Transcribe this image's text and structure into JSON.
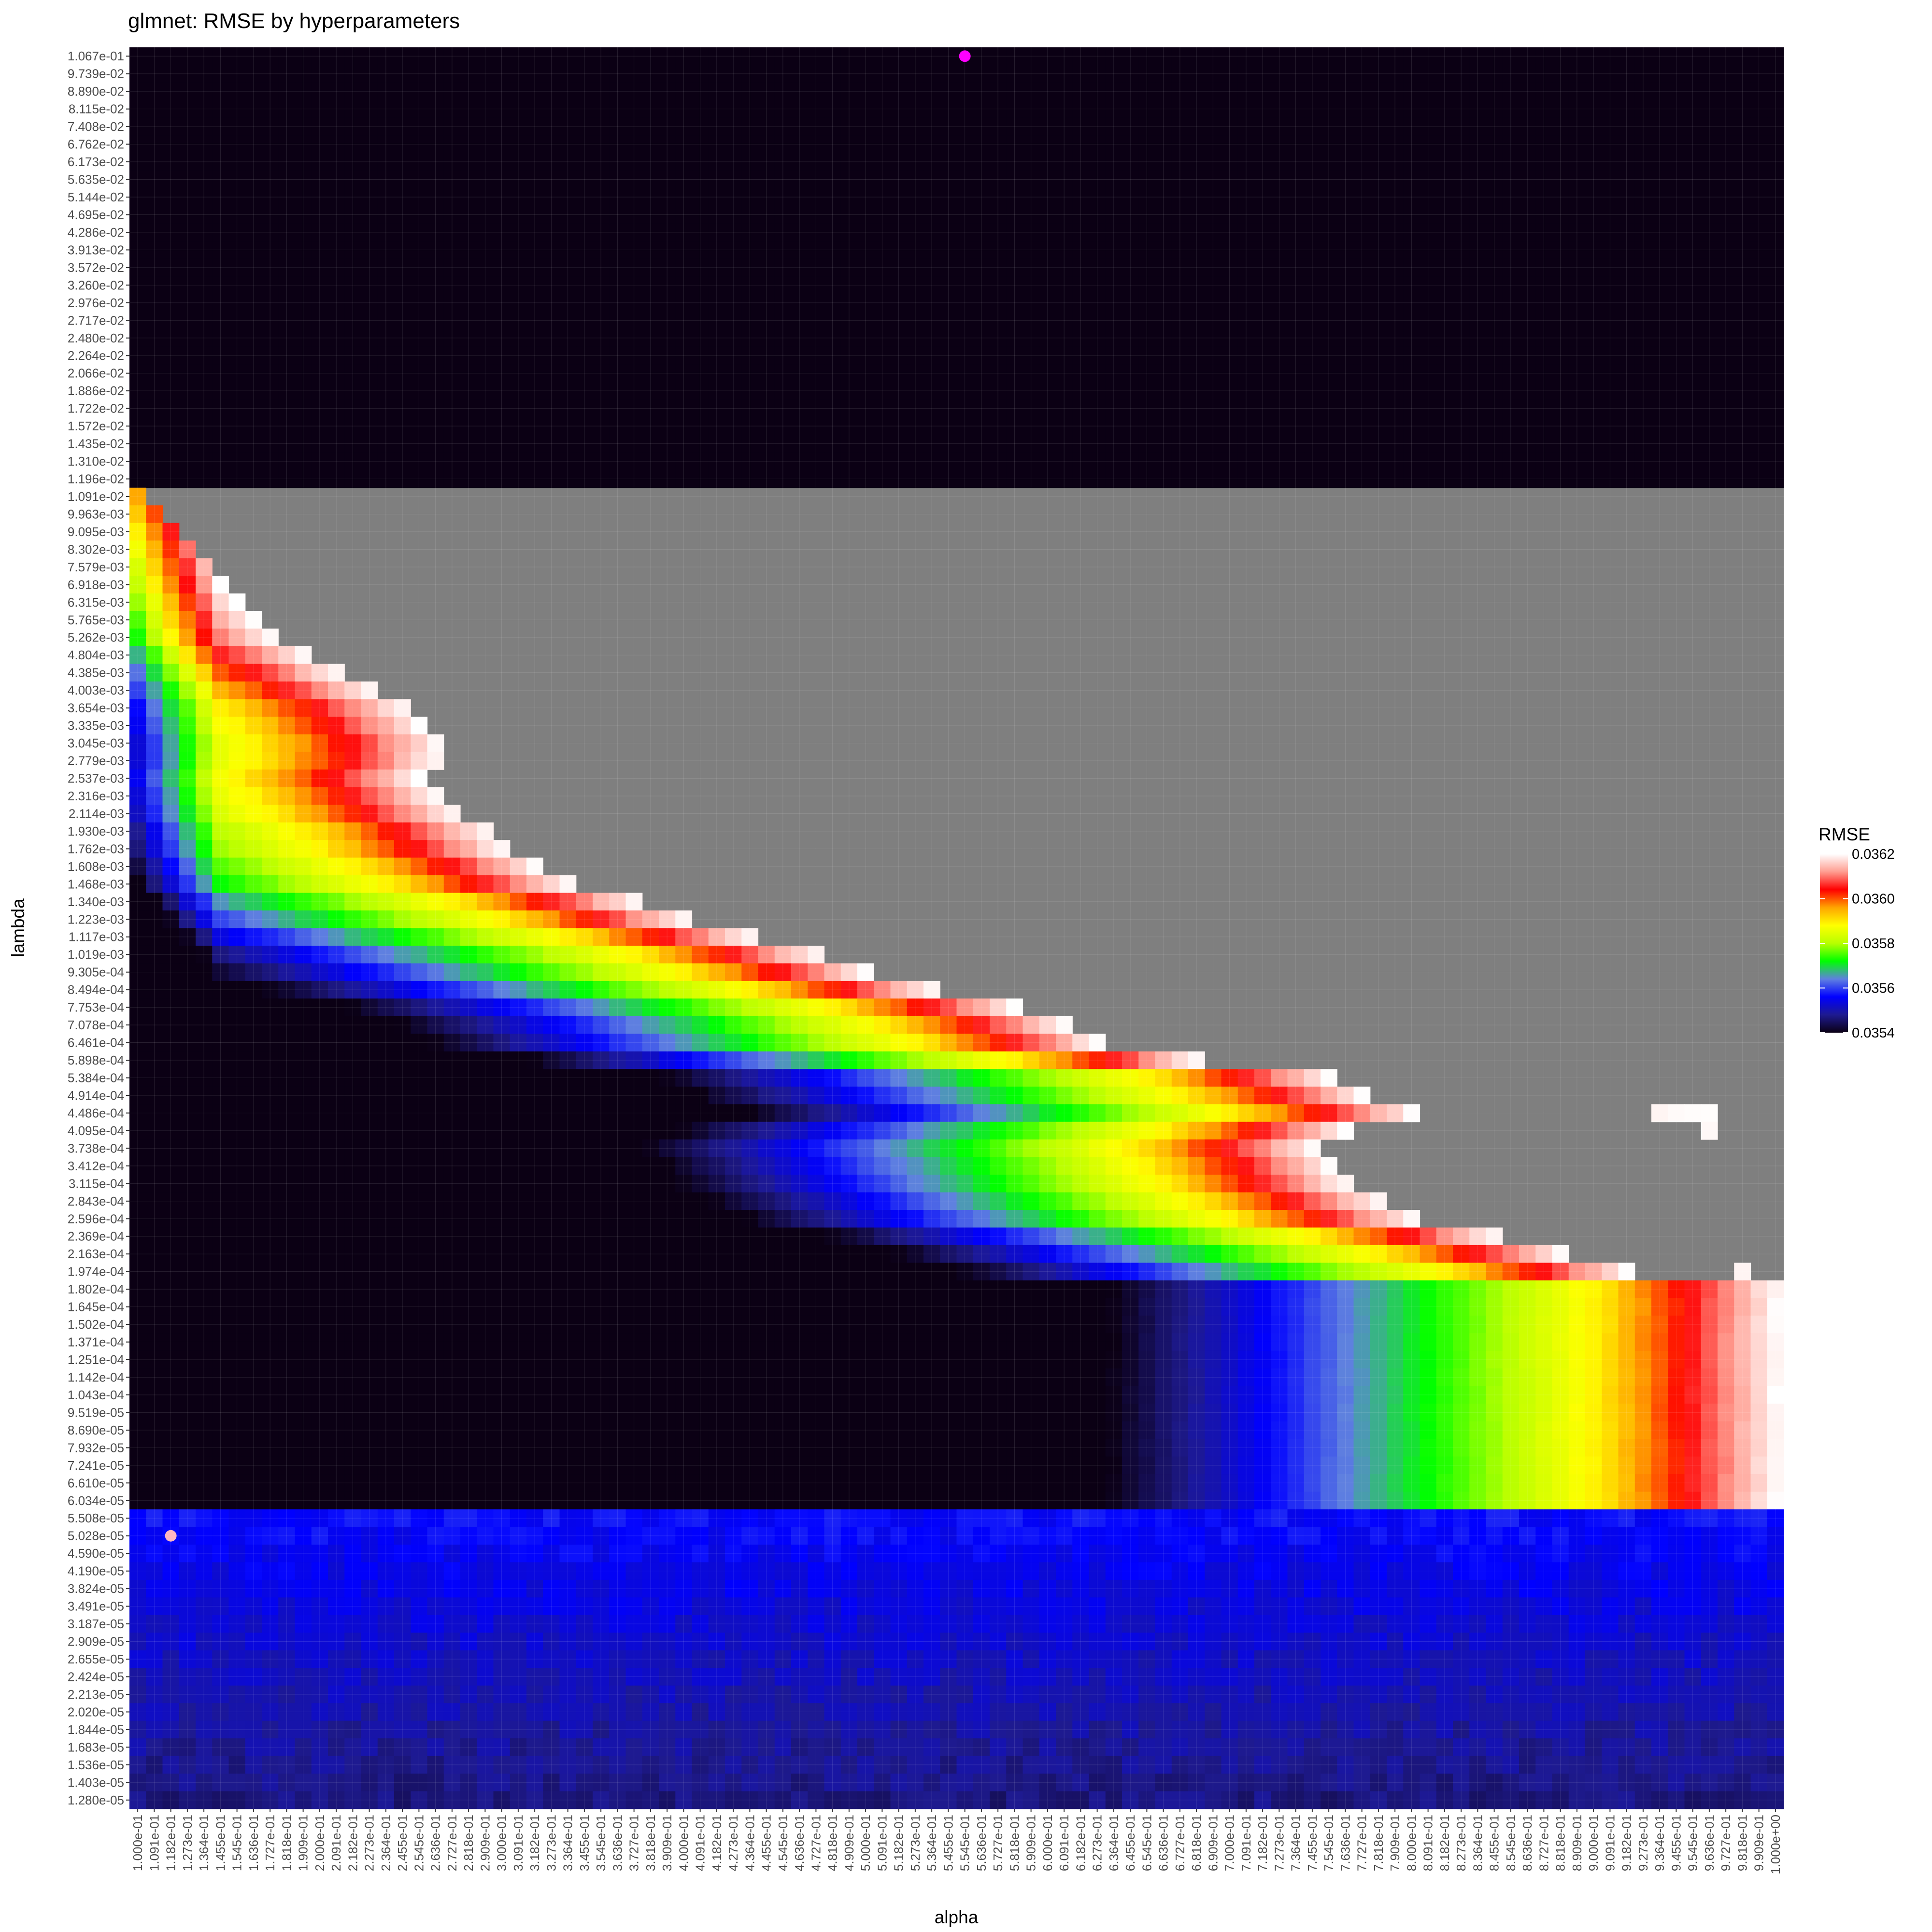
{
  "chart_data": {
    "type": "heatmap",
    "title": "glmnet: RMSE by hyperparameters",
    "xlabel": "alpha",
    "ylabel": "lambda",
    "x_ticks": [
      "1.000e-01",
      "1.091e-01",
      "1.182e-01",
      "1.273e-01",
      "1.364e-01",
      "1.455e-01",
      "1.545e-01",
      "1.636e-01",
      "1.727e-01",
      "1.818e-01",
      "1.909e-01",
      "2.000e-01",
      "2.091e-01",
      "2.182e-01",
      "2.273e-01",
      "2.364e-01",
      "2.455e-01",
      "2.545e-01",
      "2.636e-01",
      "2.727e-01",
      "2.818e-01",
      "2.909e-01",
      "3.000e-01",
      "3.091e-01",
      "3.182e-01",
      "3.273e-01",
      "3.364e-01",
      "3.455e-01",
      "3.545e-01",
      "3.636e-01",
      "3.727e-01",
      "3.818e-01",
      "3.909e-01",
      "4.000e-01",
      "4.091e-01",
      "4.182e-01",
      "4.273e-01",
      "4.364e-01",
      "4.455e-01",
      "4.545e-01",
      "4.636e-01",
      "4.727e-01",
      "4.818e-01",
      "4.909e-01",
      "5.000e-01",
      "5.091e-01",
      "5.182e-01",
      "5.273e-01",
      "5.364e-01",
      "5.455e-01",
      "5.545e-01",
      "5.636e-01",
      "5.727e-01",
      "5.818e-01",
      "5.909e-01",
      "6.000e-01",
      "6.091e-01",
      "6.182e-01",
      "6.273e-01",
      "6.364e-01",
      "6.455e-01",
      "6.545e-01",
      "6.636e-01",
      "6.727e-01",
      "6.818e-01",
      "6.909e-01",
      "7.000e-01",
      "7.091e-01",
      "7.182e-01",
      "7.273e-01",
      "7.364e-01",
      "7.455e-01",
      "7.545e-01",
      "7.636e-01",
      "7.727e-01",
      "7.818e-01",
      "7.909e-01",
      "8.000e-01",
      "8.091e-01",
      "8.182e-01",
      "8.273e-01",
      "8.364e-01",
      "8.455e-01",
      "8.545e-01",
      "8.636e-01",
      "8.727e-01",
      "8.818e-01",
      "8.909e-01",
      "9.000e-01",
      "9.091e-01",
      "9.182e-01",
      "9.273e-01",
      "9.364e-01",
      "9.455e-01",
      "9.545e-01",
      "9.636e-01",
      "9.727e-01",
      "9.818e-01",
      "9.909e-01",
      "1.000e+00"
    ],
    "y_ticks": [
      "1.067e-01",
      "9.739e-02",
      "8.890e-02",
      "8.115e-02",
      "7.408e-02",
      "6.762e-02",
      "6.173e-02",
      "5.635e-02",
      "5.144e-02",
      "4.695e-02",
      "4.286e-02",
      "3.913e-02",
      "3.572e-02",
      "3.260e-02",
      "2.976e-02",
      "2.717e-02",
      "2.480e-02",
      "2.264e-02",
      "2.066e-02",
      "1.886e-02",
      "1.722e-02",
      "1.572e-02",
      "1.435e-02",
      "1.310e-02",
      "1.196e-02",
      "1.091e-02",
      "9.963e-03",
      "9.095e-03",
      "8.302e-03",
      "7.579e-03",
      "6.918e-03",
      "6.315e-03",
      "5.765e-03",
      "5.262e-03",
      "4.804e-03",
      "4.385e-03",
      "4.003e-03",
      "3.654e-03",
      "3.335e-03",
      "3.045e-03",
      "2.779e-03",
      "2.537e-03",
      "2.316e-03",
      "2.114e-03",
      "1.930e-03",
      "1.762e-03",
      "1.608e-03",
      "1.468e-03",
      "1.340e-03",
      "1.223e-03",
      "1.117e-03",
      "1.019e-03",
      "9.305e-04",
      "8.494e-04",
      "7.753e-04",
      "7.078e-04",
      "6.461e-04",
      "5.898e-04",
      "5.384e-04",
      "4.914e-04",
      "4.486e-04",
      "4.095e-04",
      "3.738e-04",
      "3.412e-04",
      "3.115e-04",
      "2.843e-04",
      "2.596e-04",
      "2.369e-04",
      "2.163e-04",
      "1.974e-04",
      "1.802e-04",
      "1.645e-04",
      "1.502e-04",
      "1.371e-04",
      "1.251e-04",
      "1.142e-04",
      "1.043e-04",
      "9.519e-05",
      "8.690e-05",
      "7.932e-05",
      "7.241e-05",
      "6.610e-05",
      "6.034e-05",
      "5.508e-05",
      "5.028e-05",
      "4.590e-05",
      "4.190e-05",
      "3.824e-05",
      "3.491e-05",
      "3.187e-05",
      "2.909e-05",
      "2.655e-05",
      "2.424e-05",
      "2.213e-05",
      "2.020e-05",
      "1.844e-05",
      "1.683e-05",
      "1.536e-05",
      "1.403e-05",
      "1.280e-05"
    ],
    "value_range": [
      0.0354,
      0.0362
    ],
    "missing_color": "#7f7f7f",
    "boundary_col_by_row": [
      [
        25,
        0
      ],
      [
        26,
        1
      ],
      [
        27,
        2
      ],
      [
        28,
        3
      ],
      [
        29,
        4
      ],
      [
        30,
        5
      ],
      [
        31,
        6
      ],
      [
        32,
        7
      ],
      [
        33,
        8
      ],
      [
        34,
        10
      ],
      [
        35,
        12
      ],
      [
        36,
        14
      ],
      [
        37,
        16
      ],
      [
        38,
        17
      ],
      [
        39,
        18
      ],
      [
        40,
        18
      ],
      [
        41,
        17
      ],
      [
        42,
        18
      ],
      [
        43,
        19
      ],
      [
        44,
        21
      ],
      [
        45,
        22
      ],
      [
        46,
        24
      ],
      [
        47,
        26
      ],
      [
        48,
        30
      ],
      [
        49,
        33
      ],
      [
        50,
        37
      ],
      [
        51,
        41
      ],
      [
        52,
        44
      ],
      [
        53,
        48
      ],
      [
        54,
        53
      ],
      [
        55,
        56
      ],
      [
        56,
        58
      ],
      [
        57,
        64
      ],
      [
        58,
        72
      ],
      [
        59,
        74
      ],
      [
        60,
        77
      ],
      [
        61,
        73
      ],
      [
        62,
        71
      ],
      [
        63,
        72
      ],
      [
        64,
        73
      ],
      [
        65,
        75
      ],
      [
        66,
        77
      ],
      [
        67,
        82
      ],
      [
        68,
        86
      ],
      [
        69,
        90
      ],
      [
        70,
        99
      ]
    ],
    "extra_cells": [
      {
        "row": 60,
        "cols": [
          92,
          93,
          94,
          95
        ]
      },
      {
        "row": 61,
        "cols": [
          95
        ]
      },
      {
        "row": 69,
        "cols": [
          97
        ]
      }
    ],
    "colorbar": {
      "title": "RMSE",
      "ticks": [
        "0.0362",
        "0.0360",
        "0.0358",
        "0.0356",
        "0.0354"
      ],
      "tick_values": [
        0.0362,
        0.036,
        0.0358,
        0.0356,
        0.0354
      ],
      "colors": [
        "#0b0014",
        "#1e1a90",
        "#0000ff",
        "#5f80e0",
        "#00ff00",
        "#b8ff00",
        "#ffff00",
        "#ffa500",
        "#ff0000",
        "#ff9d90",
        "#ffffff"
      ]
    },
    "highlight_points": [
      {
        "alpha": 0.5545,
        "lambda": 0.1067,
        "color": "#ff00ff"
      },
      {
        "alpha": 0.1182,
        "lambda": 5.028e-05,
        "color": "#ffb6c1"
      }
    ],
    "grid": true,
    "legend_position": "right"
  }
}
